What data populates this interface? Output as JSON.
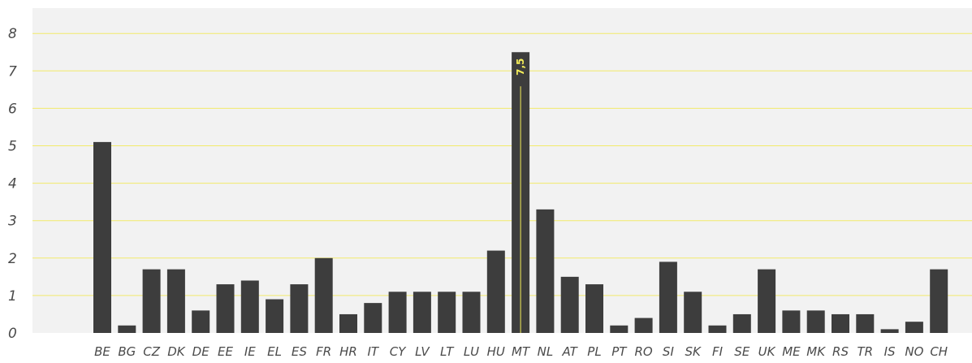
{
  "colors": {
    "bar": "#3d3d3d",
    "gridline": "#f2ea6b",
    "background": "#f2f2f2",
    "highlight_label": "#f5ee5a"
  },
  "chart_data": {
    "type": "bar",
    "title": "",
    "xlabel": "",
    "ylabel": "",
    "ylim": [
      0,
      8
    ],
    "yticks": [
      0,
      1,
      2,
      3,
      4,
      5,
      6,
      7,
      8
    ],
    "grid": true,
    "categories": [
      "BE",
      "BG",
      "CZ",
      "DK",
      "DE",
      "EE",
      "IE",
      "EL",
      "ES",
      "FR",
      "HR",
      "IT",
      "CY",
      "LV",
      "LT",
      "LU",
      "HU",
      "MT",
      "NL",
      "AT",
      "PL",
      "PT",
      "RO",
      "SI",
      "SK",
      "FI",
      "SE",
      "UK",
      "ME",
      "MK",
      "RS",
      "TR",
      "IS",
      "NO",
      "CH"
    ],
    "values": [
      5.1,
      0.2,
      1.7,
      1.7,
      0.6,
      1.3,
      1.4,
      0.9,
      1.3,
      2.0,
      0.5,
      0.8,
      1.1,
      1.1,
      1.1,
      1.1,
      2.2,
      7.5,
      3.3,
      1.5,
      1.3,
      0.2,
      0.4,
      1.9,
      1.1,
      0.2,
      0.5,
      1.7,
      0.6,
      0.6,
      0.5,
      0.5,
      0.1,
      0.3,
      1.7
    ],
    "data_labels": [
      {
        "category": "MT",
        "text": "7,5"
      }
    ]
  }
}
